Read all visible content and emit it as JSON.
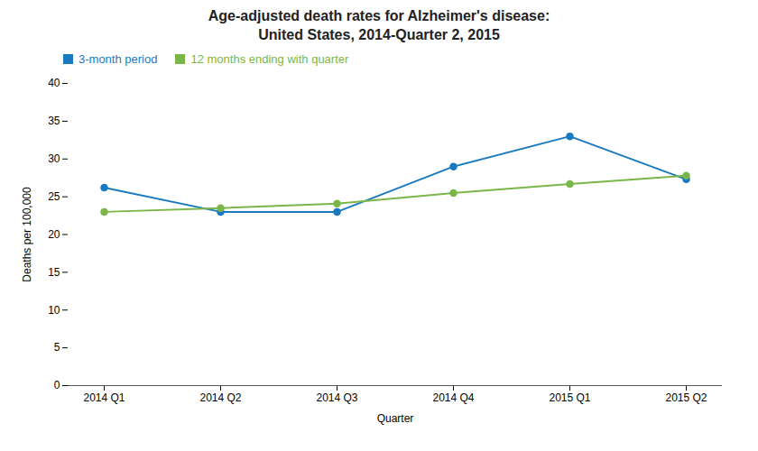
{
  "chart_data": {
    "type": "line",
    "title": "Age-adjusted death rates for Alzheimer's disease:",
    "subtitle": "United States, 2014-Quarter 2, 2015",
    "x_label": "Quarter",
    "y_label": "Deaths per 100,000",
    "categories": [
      "2014 Q1",
      "2014 Q2",
      "2014 Q3",
      "2014 Q4",
      "2015 Q1",
      "2015 Q2"
    ],
    "series": [
      {
        "name": "3-month period",
        "color": "#1a7abf",
        "marker": "circle",
        "values": [
          26.2,
          23.0,
          23.0,
          29.0,
          33.0,
          27.3
        ]
      },
      {
        "name": "12 months ending with quarter",
        "color": "#7ab648",
        "marker": "circle",
        "values": [
          23.0,
          23.5,
          24.1,
          25.5,
          26.7,
          27.8
        ]
      }
    ],
    "ylim": [
      0,
      40
    ],
    "yticks": [
      0,
      5,
      10,
      15,
      20,
      25,
      30,
      35,
      40
    ],
    "grid": false,
    "legend": "upper left"
  }
}
